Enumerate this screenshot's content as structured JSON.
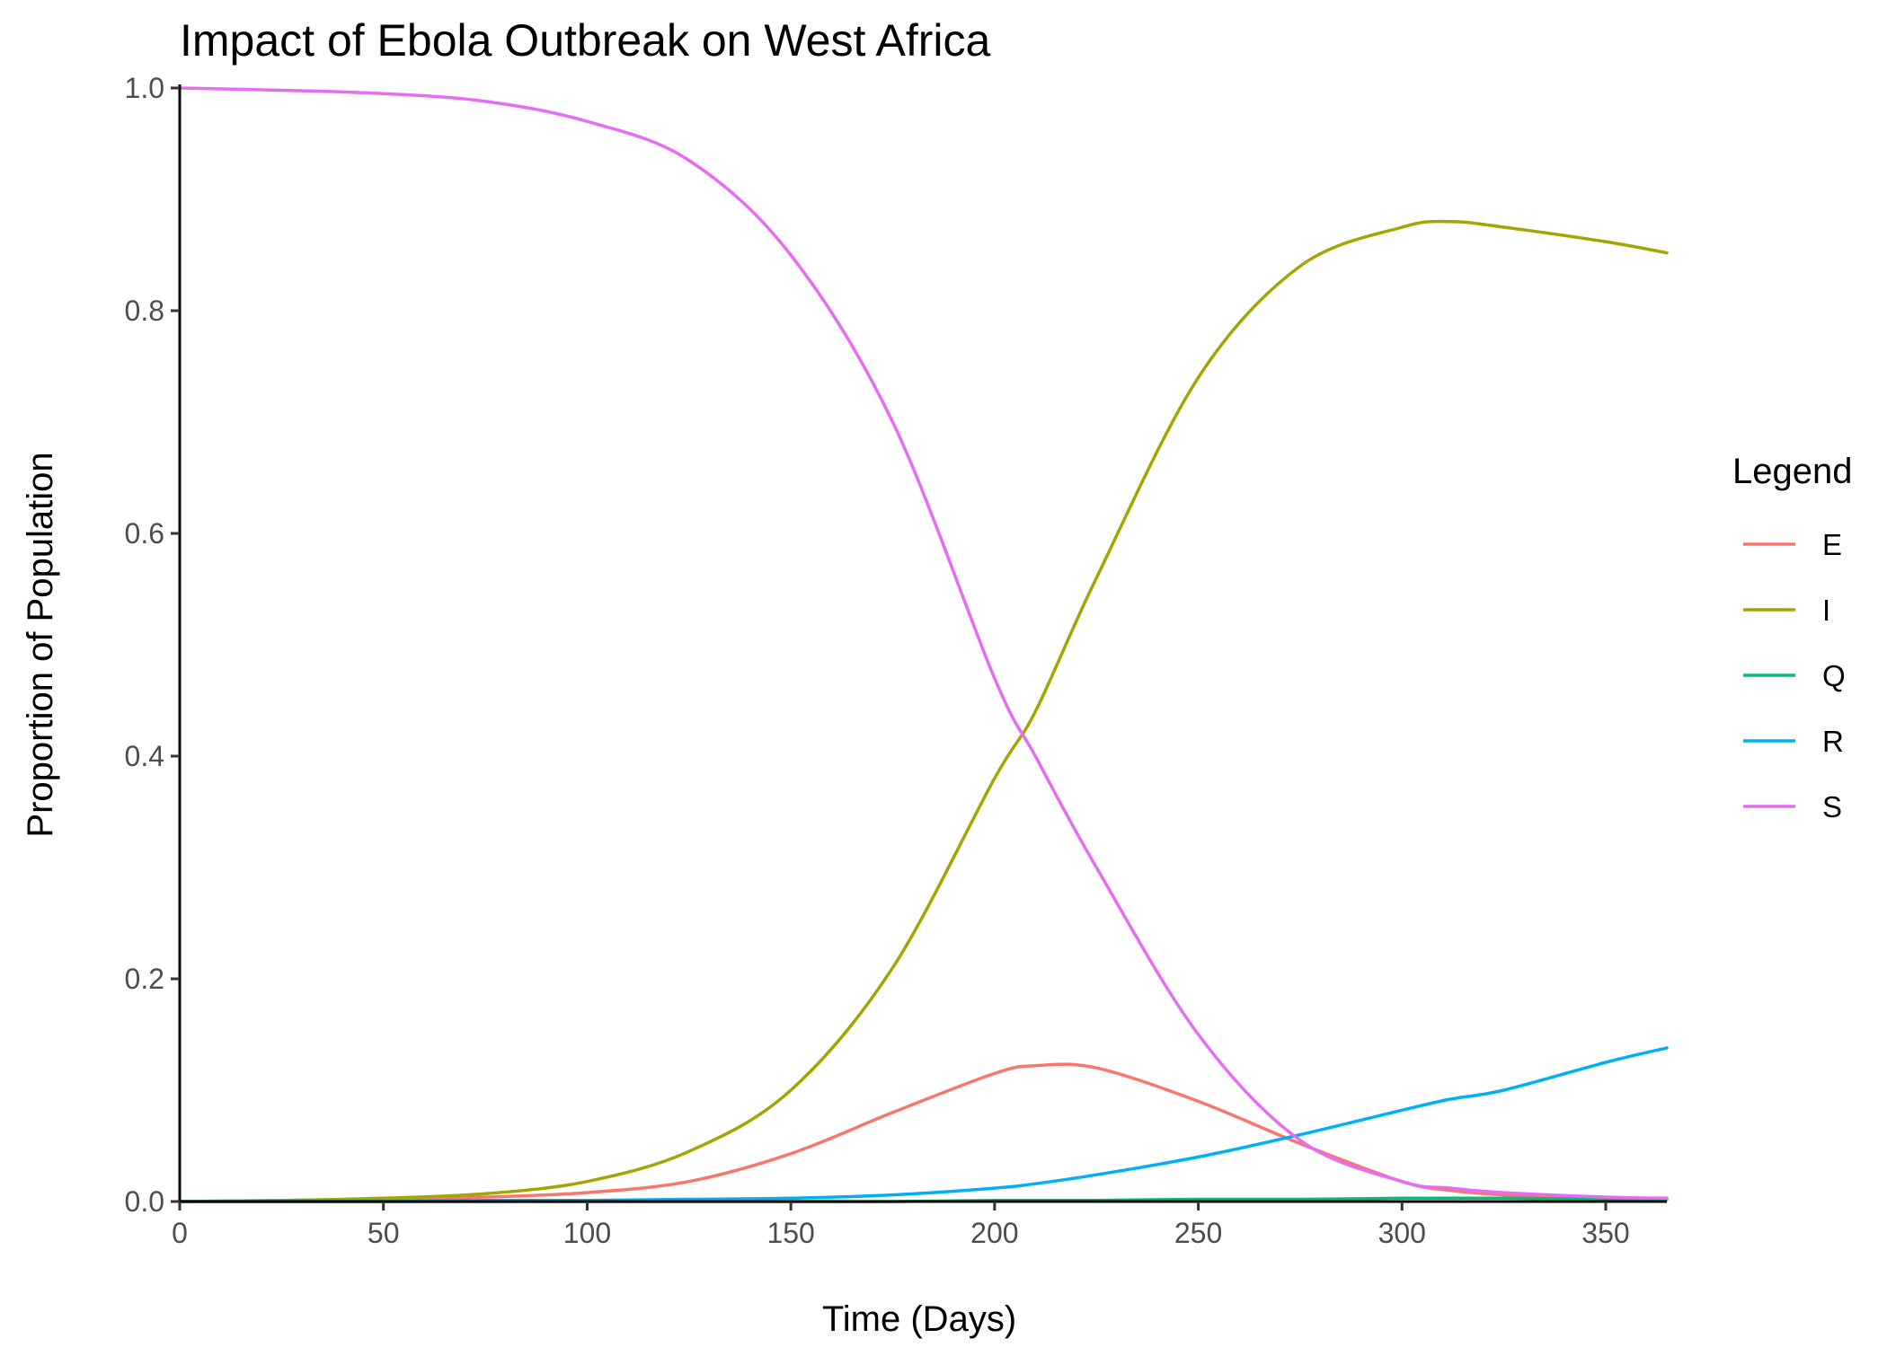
{
  "chart_data": {
    "type": "line",
    "title": "Impact of Ebola Outbreak on West Africa",
    "xlabel": "Time (Days)",
    "ylabel": "Proportion of Population",
    "xlim": [
      0,
      365
    ],
    "ylim": [
      0,
      1
    ],
    "x_ticks": [
      0,
      50,
      100,
      150,
      200,
      250,
      300,
      350
    ],
    "y_ticks": [
      0,
      0.2,
      0.4,
      0.6,
      0.8,
      1.0
    ],
    "x_tick_labels": [
      "0",
      "50",
      "100",
      "150",
      "200",
      "250",
      "300",
      "350"
    ],
    "y_tick_labels": [
      "0.0",
      "0.2",
      "0.4",
      "0.6",
      "0.8",
      "1.0"
    ],
    "grid": false,
    "legend": {
      "title": "Legend",
      "position": "right"
    },
    "x": [
      0,
      25,
      50,
      75,
      100,
      125,
      150,
      175,
      200,
      210,
      225,
      250,
      275,
      300,
      312,
      325,
      350,
      365
    ],
    "series": [
      {
        "name": "E",
        "color": "#F8766D",
        "values": [
          0.0,
          0.001,
          0.002,
          0.004,
          0.008,
          0.018,
          0.043,
          0.08,
          0.115,
          0.122,
          0.12,
          0.09,
          0.052,
          0.018,
          0.01,
          0.006,
          0.003,
          0.002
        ]
      },
      {
        "name": "I",
        "color": "#A3A500",
        "values": [
          0.0,
          0.001,
          0.003,
          0.007,
          0.018,
          0.045,
          0.1,
          0.21,
          0.38,
          0.44,
          0.56,
          0.74,
          0.84,
          0.875,
          0.88,
          0.875,
          0.862,
          0.852
        ]
      },
      {
        "name": "Q",
        "color": "#00BF7D",
        "values": [
          0.0,
          0.0,
          0.0,
          0.0,
          0.0,
          0.0,
          0.0,
          0.0,
          0.001,
          0.001,
          0.001,
          0.002,
          0.002,
          0.003,
          0.003,
          0.003,
          0.002,
          0.002
        ]
      },
      {
        "name": "R",
        "color": "#00B0F6",
        "values": [
          0.0,
          0.0,
          0.0,
          0.001,
          0.001,
          0.002,
          0.003,
          0.006,
          0.012,
          0.016,
          0.024,
          0.04,
          0.06,
          0.082,
          0.092,
          0.1,
          0.125,
          0.138
        ]
      },
      {
        "name": "S",
        "color": "#E76BF3",
        "values": [
          1.0,
          0.998,
          0.995,
          0.988,
          0.97,
          0.935,
          0.85,
          0.7,
          0.47,
          0.4,
          0.3,
          0.15,
          0.055,
          0.018,
          0.012,
          0.008,
          0.004,
          0.003
        ]
      }
    ]
  }
}
